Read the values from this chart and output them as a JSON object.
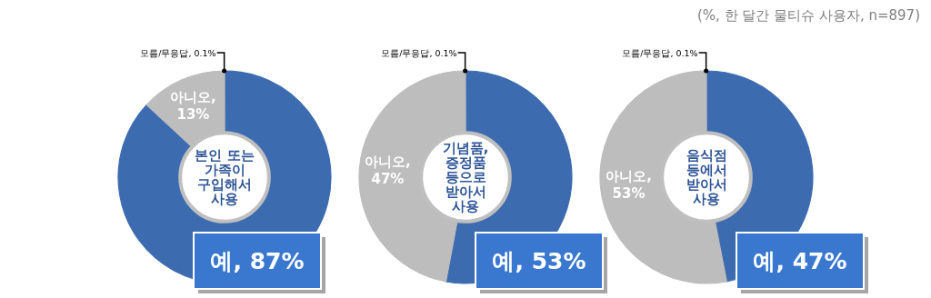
{
  "chart_data": [
    {
      "type": "donut",
      "title": "본인 또는 가족이 구입해서 사용",
      "categories": [
        "예",
        "아니오",
        "모름/무응답"
      ],
      "values": [
        87,
        13,
        0.1
      ],
      "colors": [
        "#3d6bb0",
        "#bdbdbd",
        "#bdbdbd"
      ],
      "value_labels": [
        ", 87%",
        ", 13%",
        ", 0.1%"
      ]
    },
    {
      "type": "donut",
      "title": "기념품, 증정품 등으로 받아서 사용",
      "categories": [
        "예",
        "아니오",
        "모름/무응답"
      ],
      "values": [
        53,
        47,
        0.1
      ],
      "colors": [
        "#3d6bb0",
        "#bdbdbd",
        "#bdbdbd"
      ],
      "value_labels": [
        ", 53%",
        ", 47%",
        ", 0.1%"
      ]
    },
    {
      "type": "donut",
      "title": "음식점 등에서 받아서 사용",
      "categories": [
        "예",
        "아니오",
        "모름/무응답"
      ],
      "values": [
        47,
        53,
        0.1
      ],
      "colors": [
        "#3d6bb0",
        "#bdbdbd",
        "#bdbdbd"
      ],
      "value_labels": [
        ", 47%",
        ", 53%",
        ", 0.1%"
      ],
      "annotations": [
        "(%, 한 달간 물티슈 사용자, n=897)"
      ]
    }
  ]
}
